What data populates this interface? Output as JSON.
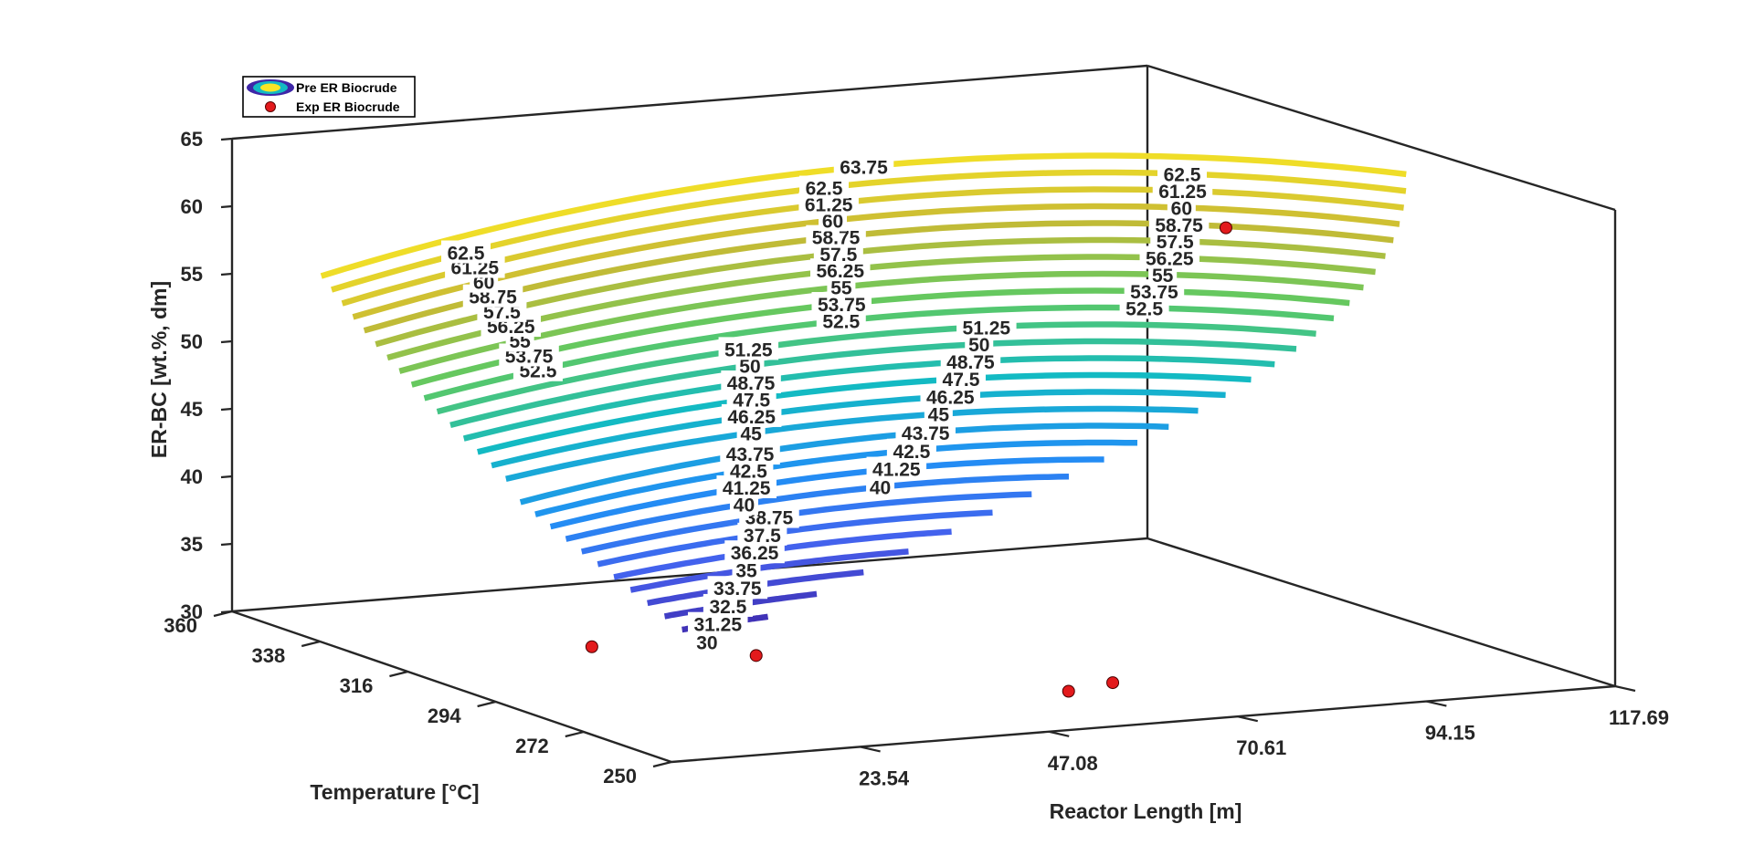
{
  "chart_data": {
    "type": "contour3",
    "title": "",
    "xlabel": "Reactor Length [m]",
    "ylabel": "Temperature [°C]",
    "zlabel": "ER-BC [wt.%, dm]",
    "x_ticks": [
      "23.54",
      "47.08",
      "70.61",
      "94.15",
      "117.69"
    ],
    "y_ticks": [
      "250",
      "272",
      "294",
      "316",
      "338",
      "360"
    ],
    "z_ticks": [
      "30",
      "35",
      "40",
      "45",
      "50",
      "55",
      "60",
      "65"
    ],
    "zlim": [
      30,
      65
    ],
    "contour_levels": [
      "30",
      "31.25",
      "32.5",
      "33.75",
      "35",
      "36.25",
      "37.5",
      "38.75",
      "40",
      "41.25",
      "42.5",
      "43.75",
      "45",
      "46.25",
      "47.5",
      "48.75",
      "50",
      "51.25",
      "52.5",
      "53.75",
      "55",
      "56.25",
      "57.5",
      "58.75",
      "60",
      "61.25",
      "62.5",
      "63.75"
    ],
    "colormap": "parula",
    "colors": {
      "low": "#3e26a8",
      "mid": "#13bac3",
      "high": "#f9e625"
    },
    "legend": {
      "location": "top-left",
      "entries": [
        {
          "label": "Pre ER Biocrude",
          "marker": "contour"
        },
        {
          "label": "Exp ER Biocrude",
          "marker": "red-dot"
        }
      ]
    },
    "experimental_points": [
      {
        "length": 10,
        "temperature": 290,
        "value": 34
      },
      {
        "length": 28,
        "temperature": 285,
        "value": 33
      },
      {
        "length": 57,
        "temperature": 265,
        "value": 31
      },
      {
        "length": 64,
        "temperature": 268,
        "value": 31
      },
      {
        "length": 110,
        "temperature": 332,
        "value": 56
      }
    ],
    "grid": false
  }
}
